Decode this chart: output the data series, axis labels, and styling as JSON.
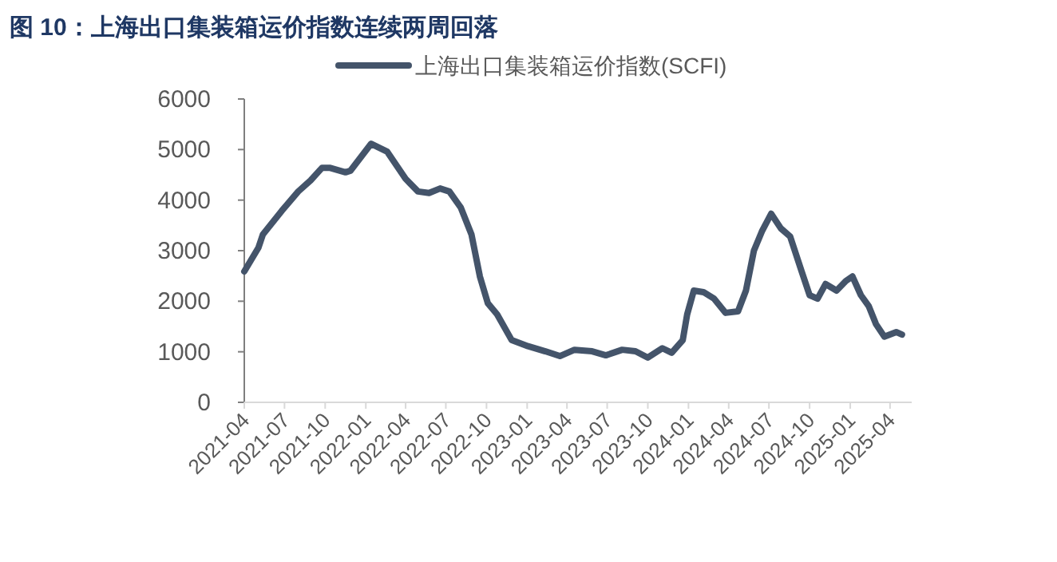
{
  "chart_data": {
    "type": "line",
    "title": "图 10：上海出口集装箱运价指数连续两周回落",
    "x": [
      "2021-04-01",
      "2021-05-03",
      "2021-05-13",
      "2021-06-25",
      "2021-08-01",
      "2021-08-29",
      "2021-09-24",
      "2021-10-11",
      "2021-11-16",
      "2021-11-27",
      "2022-01-13",
      "2022-02-18",
      "2022-04-01",
      "2022-04-29",
      "2022-05-24",
      "2022-06-18",
      "2022-07-09",
      "2022-08-04",
      "2022-08-28",
      "2022-09-16",
      "2022-10-04",
      "2022-10-25",
      "2022-11-27",
      "2023-01-03",
      "2023-02-11",
      "2023-03-16",
      "2023-04-18",
      "2023-05-28",
      "2023-06-28",
      "2023-08-04",
      "2023-09-03",
      "2023-10-01",
      "2023-11-03",
      "2023-11-24",
      "2023-12-19",
      "2023-12-29",
      "2024-01-13",
      "2024-02-04",
      "2024-02-28",
      "2024-03-25",
      "2024-04-22",
      "2024-05-10",
      "2024-05-28",
      "2024-06-15",
      "2024-07-06",
      "2024-07-28",
      "2024-08-18",
      "2024-09-13",
      "2024-10-01",
      "2024-10-19",
      "2024-11-06",
      "2024-12-01",
      "2024-12-22",
      "2025-01-06",
      "2025-01-25",
      "2025-02-12",
      "2025-02-28",
      "2025-03-19",
      "2025-04-15",
      "2025-04-28"
    ],
    "series": [
      {
        "name": "上海出口集装箱运价指数(SCFI)",
        "color": "#44546a",
        "values": [
          2590,
          3060,
          3320,
          3790,
          4170,
          4390,
          4640,
          4640,
          4550,
          4580,
          5115,
          4960,
          4420,
          4170,
          4140,
          4230,
          4170,
          3850,
          3320,
          2490,
          1960,
          1740,
          1230,
          1110,
          1010,
          915,
          1040,
          1010,
          930,
          1040,
          1010,
          885,
          1070,
          980,
          1230,
          1740,
          2210,
          2180,
          2050,
          1770,
          1800,
          2210,
          3000,
          3380,
          3730,
          3440,
          3280,
          2590,
          2120,
          2050,
          2340,
          2210,
          2400,
          2490,
          2120,
          1900,
          1550,
          1300,
          1390,
          1340
        ]
      }
    ],
    "xlim": [
      "2021-04-01",
      "2025-05-20"
    ],
    "xticks": [
      "2021-04",
      "2021-07",
      "2021-10",
      "2022-01",
      "2022-04",
      "2022-07",
      "2022-10",
      "2023-01",
      "2023-04",
      "2023-07",
      "2023-10",
      "2024-01",
      "2024-04",
      "2024-07",
      "2024-10",
      "2025-01",
      "2025-04"
    ],
    "ylim": [
      0,
      6000
    ],
    "yticks": [
      0,
      1000,
      2000,
      3000,
      4000,
      5000,
      6000
    ],
    "legend": "top",
    "grid": false
  }
}
